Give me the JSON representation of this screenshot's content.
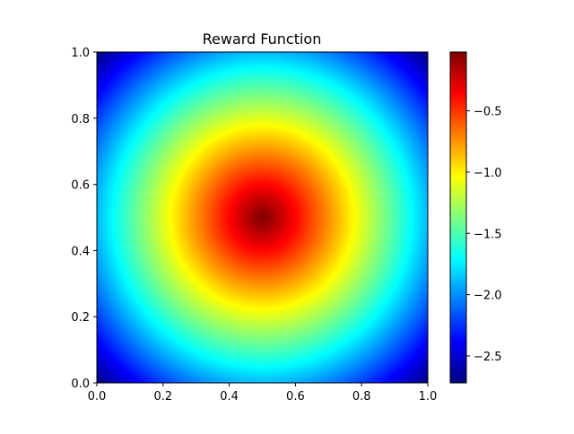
{
  "chart_data": {
    "type": "heatmap",
    "title": "Reward Function",
    "xlabel": "",
    "ylabel": "",
    "xlim": [
      0,
      1
    ],
    "ylim": [
      0,
      1
    ],
    "x_ticks": [
      "0.0",
      "0.2",
      "0.4",
      "0.6",
      "0.8",
      "1.0"
    ],
    "y_ticks": [
      "0.0",
      "0.2",
      "0.4",
      "0.6",
      "0.8",
      "1.0"
    ],
    "colorbar": {
      "colormap": "jet",
      "vmin": -2.72,
      "vmax": -0.02,
      "ticks": [
        -2.5,
        -2.0,
        -1.5,
        -1.0,
        -0.5
      ],
      "tick_labels": [
        "−2.5",
        "−2.0",
        "−1.5",
        "−1.0",
        "−0.5"
      ]
    },
    "peak": {
      "x": 0.5,
      "y": 0.5,
      "value": -0.02
    },
    "grid": false,
    "legend": "none"
  }
}
